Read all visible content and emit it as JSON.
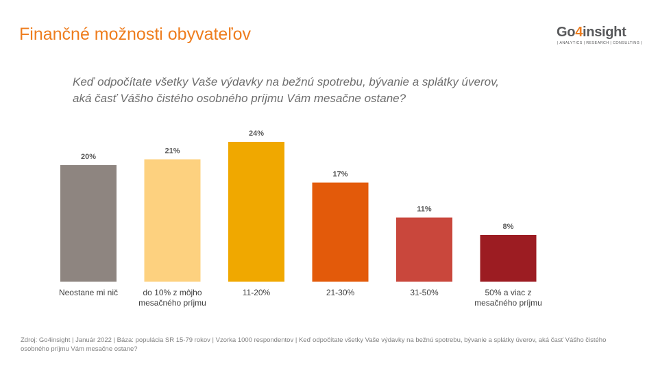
{
  "title": "Finančné možnosti obyvateľov",
  "logo": {
    "word_start": "Go",
    "word_four": "4",
    "word_end": "insight",
    "tagline": "| ANALYTICS | RESEARCH | CONSULTING |"
  },
  "question": "Keď odpočítate všetky Vaše výdavky na bežnú spotrebu, bývanie a splátky úverov, aká časť Vášho čistého osobného príjmu Vám mesačne ostane?",
  "footnote": "Zdroj: Go4insight | Január 2022 | Báza: populácia SR 15-79 rokov | Vzorka 1000 respondentov | Keď odpočítate všetky Vaše výdavky na bežnú spotrebu, bývanie a splátky úverov, aká časť Vášho čistého osobného príjmu Vám mesačne ostane?",
  "colors": {
    "title": "#ee7d1e",
    "brand_orange": "#ee7d1e",
    "text_gray": "#595959"
  },
  "chart_data": {
    "type": "bar",
    "categories": [
      [
        "Neostane mi nič"
      ],
      [
        "do 10% z môjho",
        "mesačného príjmu"
      ],
      [
        "11-20%"
      ],
      [
        "21-30%"
      ],
      [
        "31-50%"
      ],
      [
        "50% a viac z",
        "mesačného príjmu"
      ]
    ],
    "values": [
      20,
      21,
      24,
      17,
      11,
      8
    ],
    "value_labels": [
      "20%",
      "21%",
      "24%",
      "17%",
      "11%",
      "8%"
    ],
    "bar_colors": [
      "#8e8580",
      "#fdd17f",
      "#f0a800",
      "#e35a0a",
      "#c9473c",
      "#9c1c22"
    ],
    "ylim": [
      0,
      24
    ],
    "grid": false,
    "legend": "none"
  }
}
